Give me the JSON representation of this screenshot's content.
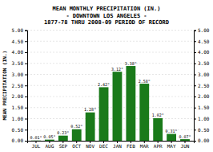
{
  "chart_data": {
    "type": "bar",
    "title": [
      "MEAN MONTHLY PRECIPITATION (IN.)",
      "- DOWNTOWN LOS ANGELES -",
      "1877-78 THRU 2008-09 PERIOD OF RECORD"
    ],
    "ylabel": "MEAN PRECIPITATION (IN.)",
    "categories": [
      "JUL",
      "AUG",
      "SEP",
      "OCT",
      "NOV",
      "DEC",
      "JAN",
      "FEB",
      "MAR",
      "APR",
      "MAY",
      "JUN"
    ],
    "values": [
      0.01,
      0.05,
      0.23,
      0.52,
      1.28,
      2.42,
      3.12,
      3.38,
      2.58,
      1.02,
      0.31,
      0.07
    ],
    "value_labels": [
      "0.01\"",
      "0.05\"",
      "0.23\"",
      "0.52\"",
      "1.28\"",
      "2.42\"",
      "3.12\"",
      "3.38\"",
      "2.58\"",
      "1.02\"",
      "0.31\"",
      "0.07\""
    ],
    "data_labels": true,
    "color": "#1a7a1a",
    "ylim": [
      0,
      5.0
    ],
    "yticks": [
      {
        "value": 0.0,
        "label": "0.00"
      },
      {
        "value": 0.5,
        "label": "0.50"
      },
      {
        "value": 1.0,
        "label": "1.00"
      },
      {
        "value": 1.5,
        "label": "1.50"
      },
      {
        "value": 2.0,
        "label": "2.00"
      },
      {
        "value": 2.5,
        "label": "2.50"
      },
      {
        "value": 3.0,
        "label": "3.00"
      },
      {
        "value": 3.5,
        "label": "3.50"
      },
      {
        "value": 4.0,
        "label": "4.00"
      },
      {
        "value": 4.5,
        "label": "4.50"
      },
      {
        "value": 5.0,
        "label": "5.00"
      }
    ],
    "y2lim": [
      0,
      5.0
    ],
    "y2ticks": [
      {
        "value": 0.0,
        "label": "0.00"
      },
      {
        "value": 0.5,
        "label": "0.50"
      },
      {
        "value": 1.0,
        "label": "1.00"
      },
      {
        "value": 1.5,
        "label": "1.50"
      },
      {
        "value": 2.0,
        "label": "2.00"
      },
      {
        "value": 2.5,
        "label": "2.50"
      },
      {
        "value": 3.0,
        "label": "3.00"
      },
      {
        "value": 3.5,
        "label": "3.50"
      },
      {
        "value": 4.0,
        "label": "4.00"
      },
      {
        "value": 4.5,
        "label": "4.50"
      },
      {
        "value": 5.0,
        "label": "5.00"
      }
    ],
    "grid": true
  }
}
